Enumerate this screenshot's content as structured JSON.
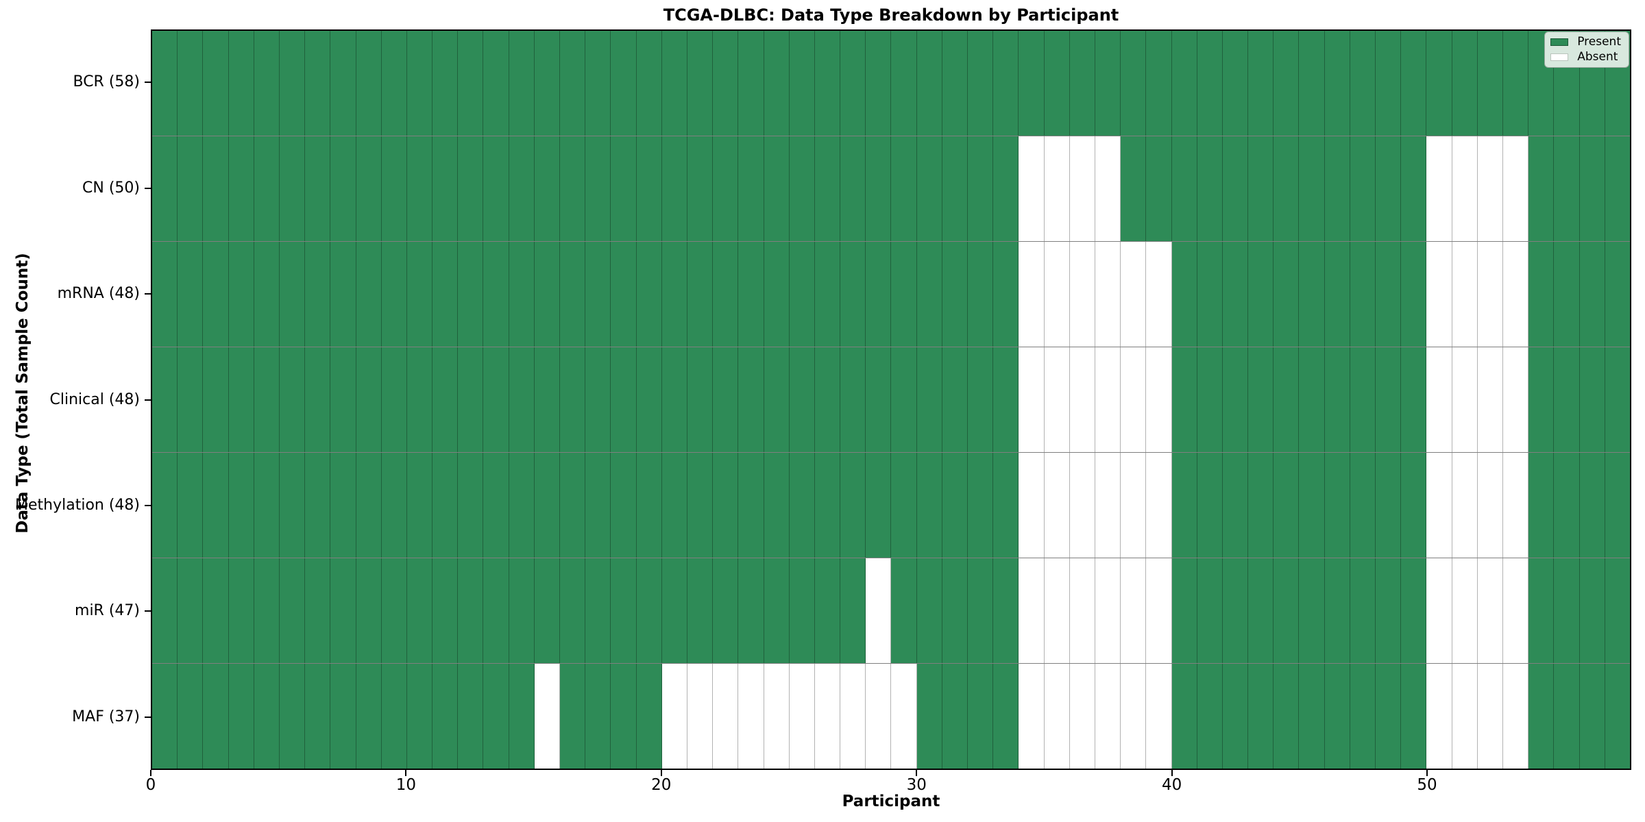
{
  "chart_data": {
    "type": "heatmap",
    "title": "TCGA-DLBC: Data Type Breakdown by Participant",
    "xlabel": "Participant",
    "ylabel": "Data Type (Total Sample Count)",
    "x_range": [
      0,
      58
    ],
    "n_participants": 58,
    "x_ticks": [
      0,
      10,
      20,
      30,
      40,
      50
    ],
    "grid": true,
    "colors": {
      "present": "#2e8b57",
      "absent": "#ffffff",
      "cell_edge": "rgba(0,0,0,0.30)",
      "row_edge": "rgba(0,0,0,0.50)"
    },
    "legend": {
      "position": "upper right",
      "entries": [
        {
          "label": "Present",
          "key": "present"
        },
        {
          "label": "Absent",
          "key": "absent"
        }
      ]
    },
    "rows": [
      {
        "label": "BCR (58)",
        "present_count": 58,
        "absent_participants": []
      },
      {
        "label": "CN (50)",
        "present_count": 50,
        "absent_participants": [
          34,
          35,
          36,
          37,
          50,
          51,
          52,
          53
        ]
      },
      {
        "label": "mRNA (48)",
        "present_count": 48,
        "absent_participants": [
          34,
          35,
          36,
          37,
          38,
          39,
          50,
          51,
          52,
          53
        ]
      },
      {
        "label": "Clinical (48)",
        "present_count": 48,
        "absent_participants": [
          34,
          35,
          36,
          37,
          38,
          39,
          50,
          51,
          52,
          53
        ]
      },
      {
        "label": "Methylation (48)",
        "present_count": 48,
        "absent_participants": [
          34,
          35,
          36,
          37,
          38,
          39,
          50,
          51,
          52,
          53
        ]
      },
      {
        "label": "miR (47)",
        "present_count": 47,
        "absent_participants": [
          28,
          34,
          35,
          36,
          37,
          38,
          39,
          50,
          51,
          52,
          53
        ]
      },
      {
        "label": "MAF (37)",
        "present_count": 37,
        "absent_participants": [
          15,
          20,
          21,
          22,
          23,
          24,
          25,
          26,
          27,
          28,
          29,
          34,
          35,
          36,
          37,
          38,
          39,
          50,
          51,
          52,
          53
        ]
      }
    ]
  }
}
